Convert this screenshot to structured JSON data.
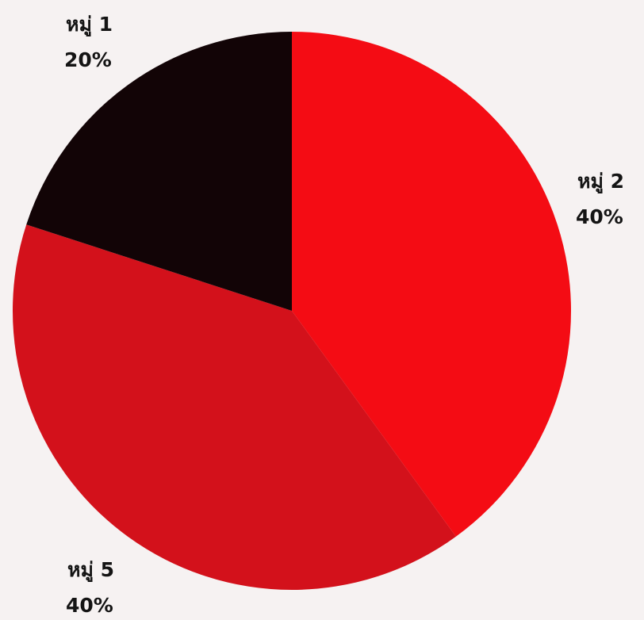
{
  "chart_data": {
    "type": "pie",
    "categories": [
      "หมู่ 2",
      "หมู่ 5",
      "หมู่ 1"
    ],
    "values": [
      40,
      40,
      20
    ],
    "value_labels": [
      "40%",
      "40%",
      "20%"
    ],
    "colors": [
      "#f40c14",
      "#d3111b",
      "#120406"
    ]
  }
}
